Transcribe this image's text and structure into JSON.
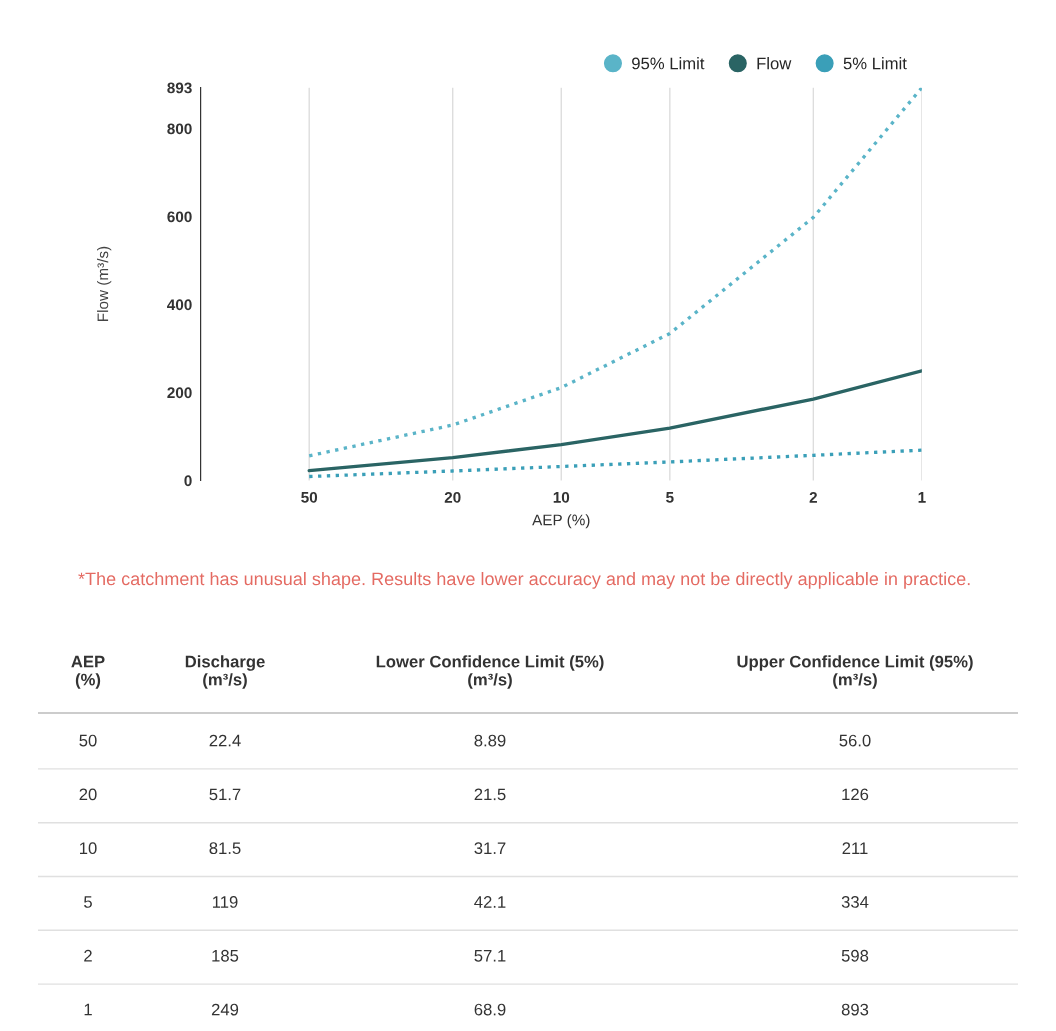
{
  "chart_data": [
    {
      "type": "line",
      "x": [
        50,
        20,
        10,
        5,
        2,
        1
      ],
      "xlabel": "AEP (%)",
      "ylabel": "Flow (m³/s)",
      "log": "x",
      "xlim": [
        100,
        1
      ],
      "xticks": [
        50,
        20,
        10,
        5,
        2,
        1
      ],
      "ylim": [
        0,
        893
      ],
      "yticks": [
        0,
        200,
        400,
        600,
        800,
        893
      ],
      "grid": "x",
      "legend": "top right",
      "series": [
        {
          "name": "95% Limit",
          "color": "#5ab4c8",
          "line_style": "dotted",
          "values": [
            56.0,
            126,
            211,
            334,
            598,
            893
          ]
        },
        {
          "name": "Flow",
          "color": "#2a6464",
          "line_style": "solid",
          "values": [
            22.4,
            51.7,
            81.5,
            119,
            185,
            249
          ]
        },
        {
          "name": "5% Limit",
          "color": "#3a9fb8",
          "line_style": "dotted",
          "values": [
            8.89,
            21.5,
            31.7,
            42.1,
            57.1,
            68.9
          ]
        }
      ],
      "annotations": [
        "*The catchment has unusual shape. Results have lower accuracy and may not be directly applicable in practice."
      ]
    },
    {
      "type": "other",
      "ylabel": "AEP\n(%)",
      "categories": [
        "Discharge\n(m³/s)",
        "Lower Confidence Limit (5%)\n(m³/s)",
        "Upper Confidence Limit (95%)\n(m³/s)"
      ],
      "y_categories": [
        "50",
        "20",
        "10",
        "5",
        "2",
        "1"
      ],
      "cell_labels": [
        [
          "22.4",
          "8.89",
          "56.0"
        ],
        [
          "51.7",
          "21.5",
          "126"
        ],
        [
          "81.5",
          "31.7",
          "211"
        ],
        [
          "119",
          "42.1",
          "334"
        ],
        [
          "185",
          "57.1",
          "598"
        ],
        [
          "249",
          "68.9",
          "893"
        ]
      ]
    }
  ]
}
